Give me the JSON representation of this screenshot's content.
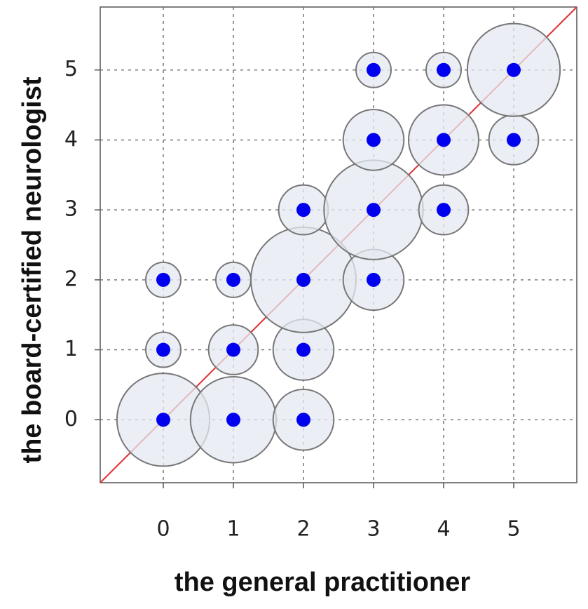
{
  "chart_data": {
    "type": "scatter",
    "x_label": "the general practitioner",
    "y_label": "the board-certified neurologist",
    "xlim": [
      -0.9,
      5.9
    ],
    "ylim": [
      -0.9,
      5.9
    ],
    "xticks": [
      0,
      1,
      2,
      3,
      4,
      5
    ],
    "yticks": [
      0,
      1,
      2,
      3,
      4,
      5
    ],
    "grid": true,
    "bubble_color": "#e4e8f0",
    "point_color": "#0000ee",
    "reference_line_color": "#e03030",
    "series": [
      {
        "x": [
          0,
          1,
          2,
          0,
          1,
          2,
          0,
          1,
          2,
          3,
          2,
          3,
          4,
          3,
          4,
          5,
          3,
          4,
          5
        ],
        "y": [
          0,
          0,
          0,
          1,
          1,
          1,
          2,
          2,
          2,
          2,
          3,
          3,
          3,
          4,
          4,
          4,
          5,
          5,
          5
        ],
        "sizes": [
          7,
          6,
          3,
          1,
          2,
          3,
          1,
          1,
          9,
          3,
          2,
          8,
          2,
          3,
          4,
          2,
          1,
          1,
          7
        ]
      }
    ]
  }
}
